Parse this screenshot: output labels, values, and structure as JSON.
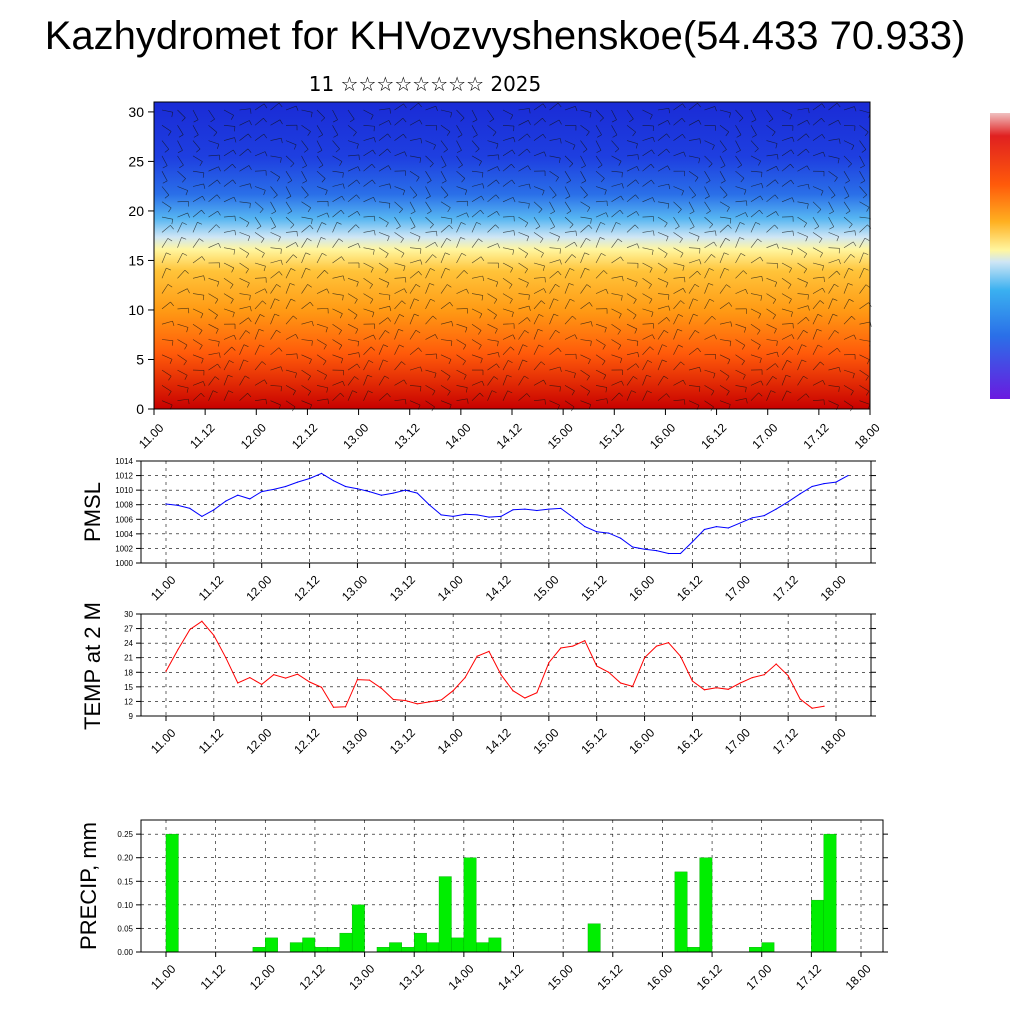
{
  "title": "Kazhydromet for KHVozvyshenskoe(54.433 70.933)",
  "subtitle": "11 ☆☆☆☆☆☆☆☆ 2025",
  "colors": {
    "pmsl_line": "#0000ff",
    "temp_line": "#ff0000",
    "precip_bar": "#00ee00",
    "grid": "#000000"
  },
  "chart_data": [
    {
      "type": "heatmap",
      "title": "",
      "x_tick_labels": [
        "11.00",
        "11.12",
        "12.00",
        "12.12",
        "13.00",
        "13.12",
        "14.00",
        "14.12",
        "15.00",
        "15.12",
        "16.00",
        "16.12",
        "17.00",
        "17.12",
        "18.00"
      ],
      "y_tick_labels": [
        "0",
        "5",
        "10",
        "15",
        "20",
        "25",
        "30"
      ],
      "ylim": [
        0,
        31
      ],
      "description_palette": "blue (top) to yellow to red (bottom) with wind barbs overlay",
      "colorbar": "vertical, right, no labels"
    },
    {
      "type": "line",
      "ylabel": "PMSL",
      "ylim": [
        1000,
        1014
      ],
      "y_tick_labels": [
        "1000",
        "1002",
        "1004",
        "1006",
        "1008",
        "1010",
        "1012",
        "1014"
      ],
      "x_tick_labels": [
        "11.00",
        "11.12",
        "12.00",
        "12.12",
        "13.00",
        "13.12",
        "14.00",
        "14.12",
        "15.00",
        "15.12",
        "16.00",
        "16.12",
        "17.00",
        "17.12",
        "18.00"
      ],
      "grid": true,
      "series": [
        {
          "values": [
            1008.1,
            1007.9,
            1007.5,
            1006.4,
            1007.3,
            1008.5,
            1009.3,
            1008.8,
            1009.8,
            1010.1,
            1010.5,
            1011.1,
            1011.6,
            1012.3,
            1011.3,
            1010.5,
            1010.2,
            1009.8,
            1009.3,
            1009.6,
            1010.0,
            1009.6,
            1008.0,
            1006.6,
            1006.4,
            1006.7,
            1006.6,
            1006.3,
            1006.4,
            1007.3,
            1007.4,
            1007.2,
            1007.4,
            1007.5,
            1006.3,
            1005.0,
            1004.3,
            1004.1,
            1003.4,
            1002.2,
            1001.9,
            1001.7,
            1001.3,
            1001.3,
            1002.9,
            1004.6,
            1005.0,
            1004.8,
            1005.5,
            1006.2,
            1006.5,
            1007.4,
            1008.4,
            1009.5,
            1010.5,
            1010.9,
            1011.1,
            1012.0
          ]
        }
      ]
    },
    {
      "type": "line",
      "ylabel": "TEMP at 2 M",
      "ylim": [
        9,
        30
      ],
      "y_tick_labels": [
        "9",
        "12",
        "15",
        "18",
        "21",
        "24",
        "27",
        "30"
      ],
      "x_tick_labels": [
        "11.00",
        "11.12",
        "12.00",
        "12.12",
        "13.00",
        "13.12",
        "14.00",
        "14.12",
        "15.00",
        "15.12",
        "16.00",
        "16.12",
        "17.00",
        "17.12",
        "18.00"
      ],
      "grid": true,
      "series": [
        {
          "values": [
            18.2,
            22.7,
            26.8,
            28.5,
            25.6,
            21.0,
            15.8,
            16.9,
            15.5,
            17.5,
            16.8,
            17.6,
            16.0,
            14.9,
            10.8,
            10.9,
            16.5,
            16.4,
            14.7,
            12.4,
            12.2,
            11.5,
            11.9,
            12.3,
            14.2,
            16.9,
            21.3,
            22.3,
            17.5,
            14.2,
            12.7,
            13.8,
            20.0,
            23.0,
            23.4,
            24.5,
            19.3,
            18.0,
            15.8,
            15.1,
            21.0,
            23.4,
            24.1,
            21.3,
            16.2,
            14.4,
            14.8,
            14.5,
            15.8,
            16.9,
            17.5,
            19.7,
            17.3,
            12.5,
            10.6,
            11.0
          ]
        }
      ]
    },
    {
      "type": "bar",
      "ylabel": "PRECIP, mm",
      "ylim": [
        0,
        0.28
      ],
      "y_tick_labels": [
        "0.00",
        "0.05",
        "0.10",
        "0.15",
        "0.20",
        "0.25"
      ],
      "x_tick_labels": [
        "11.00",
        "11.12",
        "12.00",
        "12.12",
        "13.00",
        "13.12",
        "14.00",
        "14.12",
        "15.00",
        "15.12",
        "16.00",
        "16.12",
        "17.00",
        "17.12",
        "18.00"
      ],
      "grid": true,
      "values": [
        0.25,
        0,
        0,
        0,
        0,
        0,
        0,
        0.01,
        0.03,
        0,
        0.02,
        0.03,
        0.01,
        0.01,
        0.04,
        0.1,
        0,
        0.01,
        0.02,
        0.01,
        0.04,
        0.02,
        0.16,
        0.03,
        0.2,
        0.02,
        0.03,
        0,
        0,
        0,
        0,
        0,
        0,
        0,
        0.06,
        0,
        0,
        0,
        0,
        0,
        0,
        0.17,
        0.01,
        0.2,
        0,
        0,
        0,
        0.01,
        0.02,
        0,
        0,
        0,
        0.11,
        0.25,
        0,
        0,
        0
      ]
    }
  ]
}
